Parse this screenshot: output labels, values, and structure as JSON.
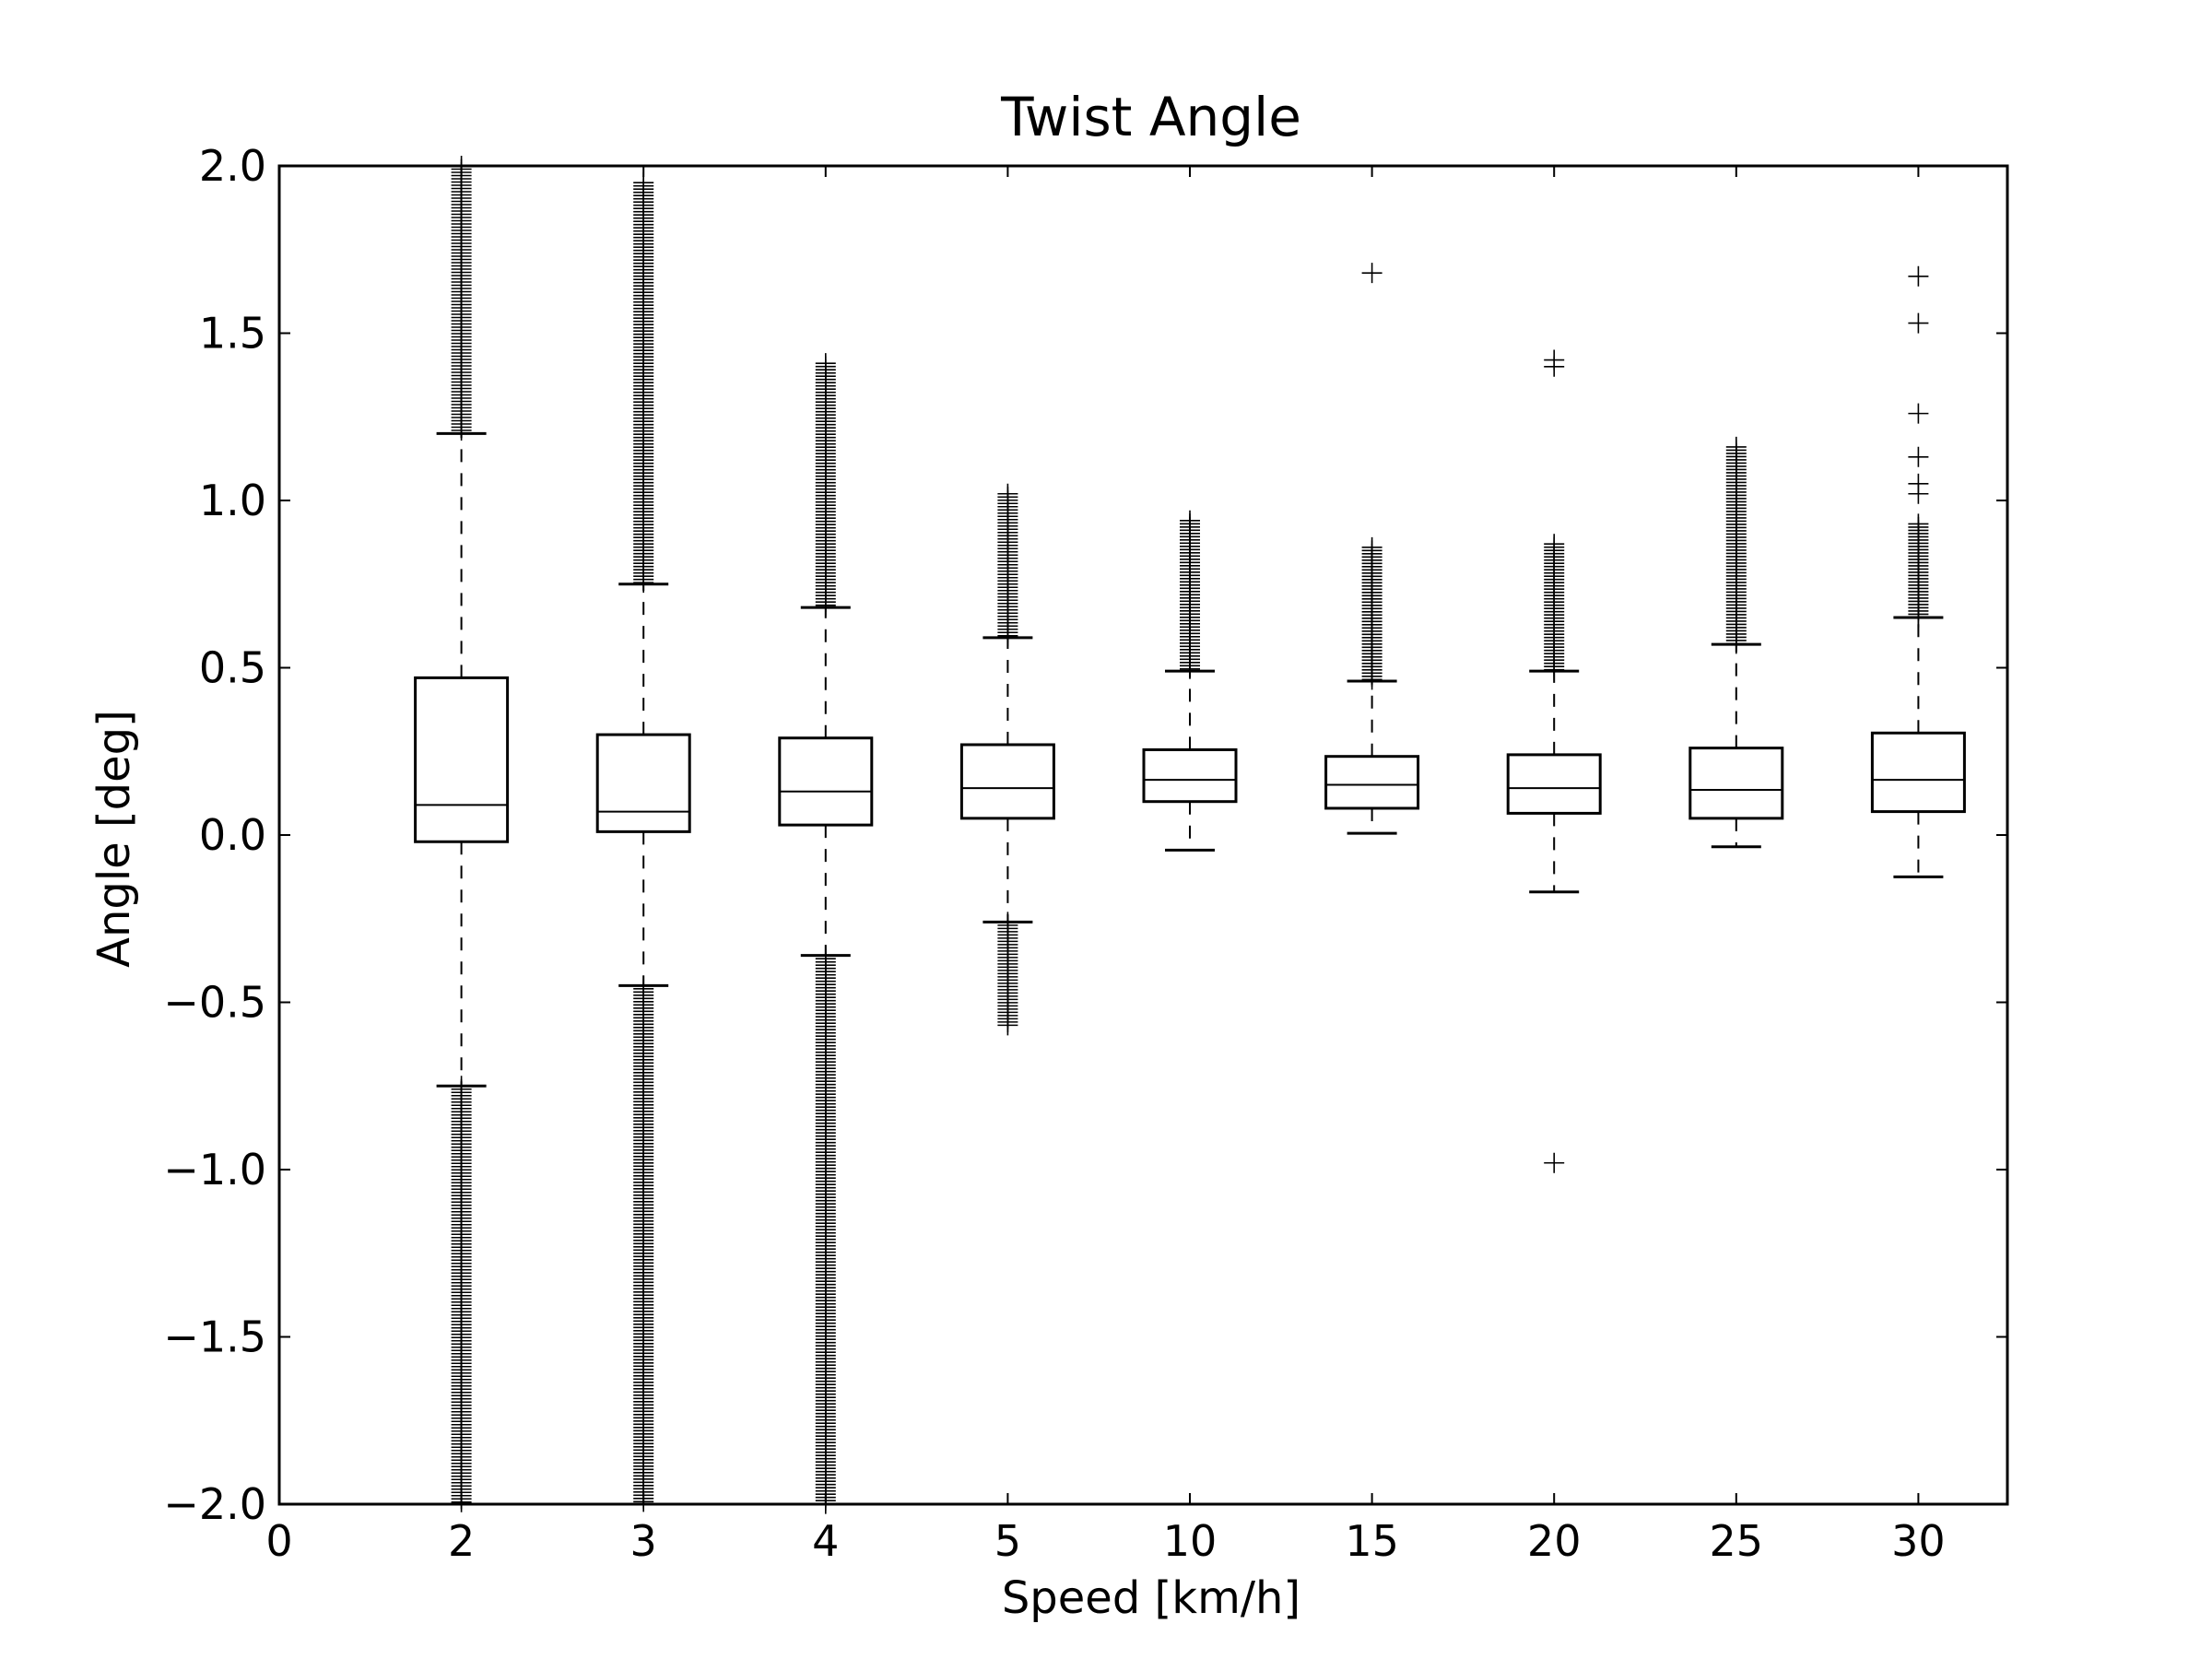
{
  "chart_data": {
    "type": "box",
    "title": "Twist Angle",
    "xlabel": "Speed [km/h]",
    "ylabel": "Angle [deg]",
    "ylim": [
      -2.0,
      2.0
    ],
    "grid": false,
    "x_tick_labels": [
      "0",
      "2",
      "3",
      "4",
      "5",
      "10",
      "15",
      "20",
      "25",
      "30"
    ],
    "y_tick_values": [
      -2.0,
      -1.5,
      -1.0,
      -0.5,
      0.0,
      0.5,
      1.0,
      1.5,
      2.0
    ],
    "y_tick_labels": [
      "−2.0",
      "−1.5",
      "−1.0",
      "−0.5",
      "0.0",
      "0.5",
      "1.0",
      "1.5",
      "2.0"
    ],
    "boxes": [
      {
        "category": "2",
        "q1": -0.02,
        "median": 0.09,
        "q3": 0.47,
        "whisker_low": -0.75,
        "whisker_high": 1.2,
        "outliers_high": [
          [
            1.2,
            2.0
          ]
        ],
        "outliers_low": [
          [
            -2.0,
            -0.75
          ]
        ]
      },
      {
        "category": "3",
        "q1": 0.01,
        "median": 0.07,
        "q3": 0.3,
        "whisker_low": -0.45,
        "whisker_high": 0.75,
        "outliers_high": [
          [
            0.75,
            1.95
          ]
        ],
        "outliers_low": [
          [
            -2.0,
            -0.45
          ]
        ]
      },
      {
        "category": "4",
        "q1": 0.03,
        "median": 0.13,
        "q3": 0.29,
        "whisker_low": -0.36,
        "whisker_high": 0.68,
        "outliers_high": [
          [
            0.68,
            1.41
          ]
        ],
        "outliers_low": [
          [
            -2.0,
            -0.36
          ]
        ]
      },
      {
        "category": "5",
        "q1": 0.05,
        "median": 0.14,
        "q3": 0.27,
        "whisker_low": -0.26,
        "whisker_high": 0.59,
        "outliers_high": [
          [
            0.59,
            1.02
          ]
        ],
        "outliers_low": [
          [
            -0.57,
            -0.26
          ]
        ]
      },
      {
        "category": "10",
        "q1": 0.1,
        "median": 0.165,
        "q3": 0.255,
        "whisker_low": -0.045,
        "whisker_high": 0.49,
        "outliers_high": [
          [
            0.49,
            0.94
          ]
        ],
        "outliers_low": []
      },
      {
        "category": "15",
        "q1": 0.08,
        "median": 0.15,
        "q3": 0.235,
        "whisker_low": 0.005,
        "whisker_high": 0.46,
        "outliers_high": [
          [
            0.46,
            0.86
          ],
          1.68
        ],
        "outliers_low": []
      },
      {
        "category": "20",
        "q1": 0.065,
        "median": 0.14,
        "q3": 0.24,
        "whisker_low": -0.17,
        "whisker_high": 0.49,
        "outliers_high": [
          [
            0.49,
            0.87
          ],
          1.4,
          1.42
        ],
        "outliers_low": [
          -0.98
        ]
      },
      {
        "category": "25",
        "q1": 0.05,
        "median": 0.135,
        "q3": 0.26,
        "whisker_low": -0.035,
        "whisker_high": 0.57,
        "outliers_high": [
          [
            0.57,
            1.16
          ]
        ],
        "outliers_low": []
      },
      {
        "category": "30",
        "q1": 0.07,
        "median": 0.165,
        "q3": 0.305,
        "whisker_low": -0.125,
        "whisker_high": 0.65,
        "outliers_high": [
          [
            0.65,
            0.93
          ],
          1.02,
          1.05,
          1.13,
          1.26,
          1.53,
          1.67
        ],
        "outliers_low": []
      }
    ]
  }
}
